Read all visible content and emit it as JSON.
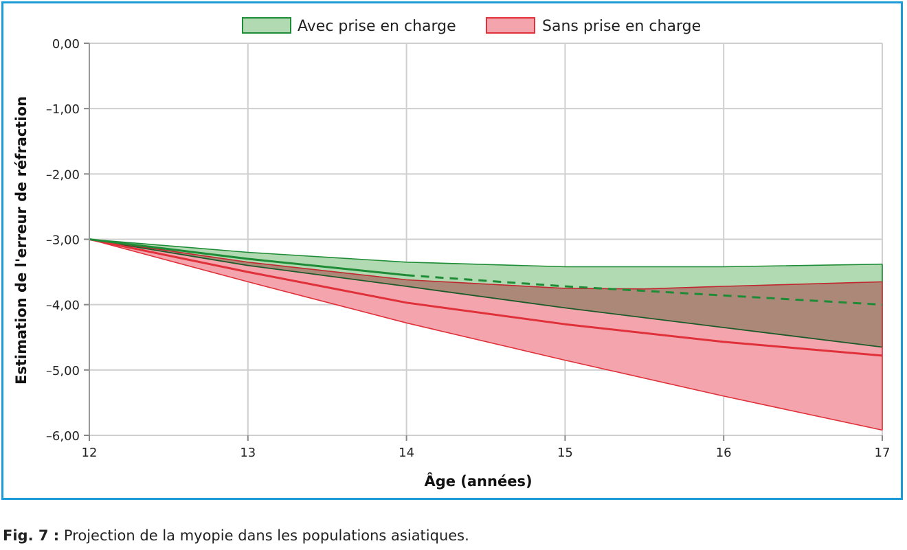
{
  "caption": {
    "label": "Fig. 7 :",
    "text": "Projection de la myopie dans les populations asiatiques."
  },
  "chart_data": {
    "type": "area",
    "xlabel": "Âge (années)",
    "ylabel": "Estimation de l'erreur de réfraction",
    "xlim": [
      12,
      17
    ],
    "ylim": [
      -6,
      0
    ],
    "x_ticks": [
      "12",
      "13",
      "14",
      "15",
      "16",
      "17"
    ],
    "y_ticks": [
      "0,00",
      "–1,00",
      "–2,00",
      "–3,00",
      "–4,00",
      "–5,00",
      "–6,00"
    ],
    "grid": true,
    "legend_position": "top",
    "series": [
      {
        "name": "Avec prise en charge",
        "color": "#1e8c36",
        "fill": "#b2dab2",
        "band_upper": {
          "x": [
            12,
            13,
            14,
            15,
            16,
            17
          ],
          "y": [
            -3.0,
            -3.2,
            -3.35,
            -3.42,
            -3.42,
            -3.38
          ]
        },
        "band_lower": {
          "x": [
            12,
            13,
            14,
            15,
            16,
            17
          ],
          "y": [
            -3.0,
            -3.4,
            -3.72,
            -4.05,
            -4.35,
            -4.65
          ]
        },
        "mean_solid": {
          "x": [
            12,
            13,
            14
          ],
          "y": [
            -3.0,
            -3.3,
            -3.55
          ]
        },
        "mean_dashed": {
          "x": [
            14,
            15,
            16,
            17
          ],
          "y": [
            -3.55,
            -3.72,
            -3.86,
            -4.0
          ]
        }
      },
      {
        "name": "Sans prise en charge",
        "color": "#e0313a",
        "fill": "#f3a4ac",
        "band_upper": {
          "x": [
            12,
            13,
            14,
            15,
            15.5,
            16,
            17
          ],
          "y": [
            -3.0,
            -3.35,
            -3.62,
            -3.75,
            -3.76,
            -3.72,
            -3.65
          ]
        },
        "band_lower": {
          "x": [
            12,
            13,
            14,
            15,
            16,
            17
          ],
          "y": [
            -3.0,
            -3.65,
            -4.28,
            -4.85,
            -5.4,
            -5.92
          ]
        },
        "mean": {
          "x": [
            12,
            13,
            14,
            15,
            16,
            17
          ],
          "y": [
            -3.0,
            -3.5,
            -3.97,
            -4.3,
            -4.57,
            -4.78
          ]
        }
      }
    ],
    "overlap_fill": "#ab8877"
  }
}
